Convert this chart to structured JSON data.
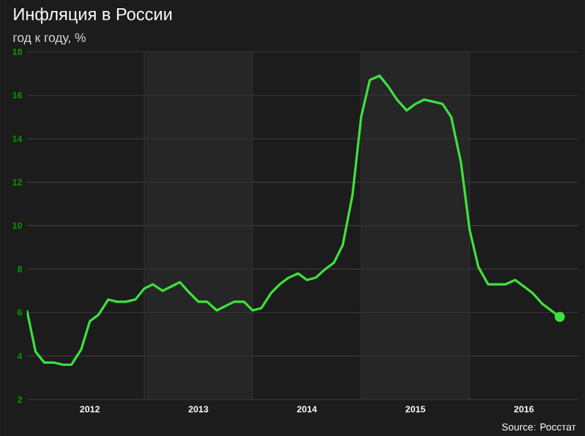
{
  "chart_data": {
    "type": "line",
    "title": "Инфляция в России",
    "subtitle": "год к году, %",
    "x": [
      "2011-12",
      "2012-01",
      "2012-02",
      "2012-03",
      "2012-04",
      "2012-05",
      "2012-06",
      "2012-07",
      "2012-08",
      "2012-09",
      "2012-10",
      "2012-11",
      "2012-12",
      "2013-01",
      "2013-02",
      "2013-03",
      "2013-04",
      "2013-05",
      "2013-06",
      "2013-07",
      "2013-08",
      "2013-09",
      "2013-10",
      "2013-11",
      "2013-12",
      "2014-01",
      "2014-02",
      "2014-03",
      "2014-04",
      "2014-05",
      "2014-06",
      "2014-07",
      "2014-08",
      "2014-09",
      "2014-10",
      "2014-11",
      "2014-12",
      "2015-01",
      "2015-02",
      "2015-03",
      "2015-04",
      "2015-05",
      "2015-06",
      "2015-07",
      "2015-08",
      "2015-09",
      "2015-10",
      "2015-11",
      "2015-12",
      "2016-01",
      "2016-02",
      "2016-03",
      "2016-04",
      "2016-05",
      "2016-06",
      "2016-07",
      "2016-08",
      "2016-09",
      "2016-10",
      "2016-11"
    ],
    "series": [
      {
        "color": "#3de23d",
        "values": [
          6.1,
          4.2,
          3.7,
          3.7,
          3.6,
          3.6,
          4.3,
          5.6,
          5.9,
          6.6,
          6.5,
          6.5,
          6.6,
          7.1,
          7.3,
          7.0,
          7.2,
          7.4,
          6.9,
          6.5,
          6.5,
          6.1,
          6.3,
          6.5,
          6.5,
          6.1,
          6.2,
          6.9,
          7.3,
          7.6,
          7.8,
          7.5,
          7.6,
          8.0,
          8.3,
          9.1,
          11.4,
          15.0,
          16.7,
          16.9,
          16.4,
          15.8,
          15.3,
          15.6,
          15.8,
          15.7,
          15.6,
          15.0,
          12.9,
          9.8,
          8.1,
          7.3,
          7.3,
          7.3,
          7.5,
          7.2,
          6.9,
          6.4,
          6.1,
          5.8
        ]
      },
      {
        "type": "scatter",
        "color": "#3de23d",
        "x": [
          "2016-11"
        ],
        "values": [
          5.8
        ]
      }
    ],
    "xlim": [
      "2011-12",
      "2017-01"
    ],
    "xticks": [
      {
        "value": "2012-07",
        "label": "2012"
      },
      {
        "value": "2013-07",
        "label": "2013"
      },
      {
        "value": "2014-07",
        "label": "2014"
      },
      {
        "value": "2015-07",
        "label": "2015"
      },
      {
        "value": "2016-07",
        "label": "2016"
      }
    ],
    "ylim": [
      2,
      18
    ],
    "yticks": [
      2,
      4,
      6,
      8,
      10,
      12,
      14,
      16,
      18
    ],
    "grid": "y",
    "bands": [
      {
        "axis": "x",
        "from": "2013-01",
        "to": "2014-01",
        "color": "#262626"
      },
      {
        "axis": "x",
        "from": "2015-01",
        "to": "2016-01",
        "color": "#262626"
      }
    ],
    "annotations": [
      "Source: Росстат"
    ]
  }
}
